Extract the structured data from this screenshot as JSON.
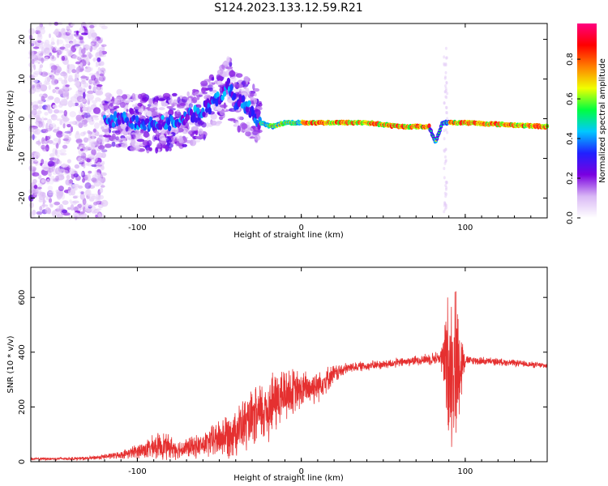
{
  "title": "S124.2023.133.12.59.R21",
  "chart_data": [
    {
      "type": "heatmap",
      "xlabel": "Height of straight line (km)",
      "ylabel": "Frequency (Hz)",
      "xlim": [
        -165,
        150
      ],
      "ylim": [
        -25,
        24
      ],
      "xticks": [
        -100,
        0,
        100
      ],
      "yticks": [
        -20,
        -10,
        0,
        10,
        20
      ],
      "colorbar": {
        "label": "Normalized spectral amplitude",
        "range": [
          0,
          0.98
        ],
        "ticks": [
          0.0,
          0.2,
          0.4,
          0.6,
          0.8
        ],
        "colormap": [
          "#ffffff",
          "#d9b8f5",
          "#7a00e0",
          "#2020ff",
          "#00c8ff",
          "#00ff40",
          "#f0ff00",
          "#ff8000",
          "#ff0000",
          "#ff0080"
        ]
      },
      "ridge": [
        {
          "x": -120,
          "f": -1
        },
        {
          "x": -110,
          "f": 0
        },
        {
          "x": -100,
          "f": -1
        },
        {
          "x": -90,
          "f": -1
        },
        {
          "x": -80,
          "f": -1
        },
        {
          "x": -70,
          "f": 0
        },
        {
          "x": -60,
          "f": 2
        },
        {
          "x": -50,
          "f": 5
        },
        {
          "x": -45,
          "f": 9
        },
        {
          "x": -40,
          "f": 4
        },
        {
          "x": -35,
          "f": 4
        },
        {
          "x": -30,
          "f": 2
        },
        {
          "x": -25,
          "f": -1
        },
        {
          "x": -18,
          "f": -2
        },
        {
          "x": -10,
          "f": -1
        },
        {
          "x": 0,
          "f": -1
        },
        {
          "x": 10,
          "f": -1
        },
        {
          "x": 20,
          "f": -1
        },
        {
          "x": 40,
          "f": -1
        },
        {
          "x": 60,
          "f": -2
        },
        {
          "x": 78,
          "f": -2
        },
        {
          "x": 82,
          "f": -6
        },
        {
          "x": 86,
          "f": -1
        },
        {
          "x": 95,
          "f": -1
        },
        {
          "x": 100,
          "f": -1
        },
        {
          "x": 150,
          "f": -2
        }
      ]
    },
    {
      "type": "line",
      "xlabel": "Height of straight line (km)",
      "ylabel": "SNR (10 * v/v)",
      "xlim": [
        -165,
        150
      ],
      "ylim": [
        0,
        710
      ],
      "xticks": [
        -100,
        0,
        100
      ],
      "yticks": [
        0,
        200,
        400,
        600
      ],
      "color": "#e53030",
      "envelope": [
        {
          "x": -165,
          "base": 10,
          "amp": 5
        },
        {
          "x": -130,
          "base": 12,
          "amp": 8
        },
        {
          "x": -110,
          "base": 25,
          "amp": 15
        },
        {
          "x": -95,
          "base": 45,
          "amp": 40
        },
        {
          "x": -85,
          "base": 60,
          "amp": 60
        },
        {
          "x": -75,
          "base": 45,
          "amp": 40
        },
        {
          "x": -60,
          "base": 60,
          "amp": 50
        },
        {
          "x": -45,
          "base": 100,
          "amp": 100
        },
        {
          "x": -30,
          "base": 150,
          "amp": 120
        },
        {
          "x": -20,
          "base": 200,
          "amp": 150
        },
        {
          "x": -10,
          "base": 250,
          "amp": 120
        },
        {
          "x": 0,
          "base": 260,
          "amp": 80
        },
        {
          "x": 10,
          "base": 280,
          "amp": 70
        },
        {
          "x": 20,
          "base": 320,
          "amp": 40
        },
        {
          "x": 30,
          "base": 345,
          "amp": 20
        },
        {
          "x": 50,
          "base": 355,
          "amp": 20
        },
        {
          "x": 70,
          "base": 370,
          "amp": 20
        },
        {
          "x": 85,
          "base": 380,
          "amp": 30
        },
        {
          "x": 90,
          "base": 350,
          "amp": 340
        },
        {
          "x": 95,
          "base": 360,
          "amp": 320
        },
        {
          "x": 100,
          "base": 370,
          "amp": 20
        },
        {
          "x": 120,
          "base": 365,
          "amp": 15
        },
        {
          "x": 150,
          "base": 350,
          "amp": 12
        }
      ]
    }
  ]
}
